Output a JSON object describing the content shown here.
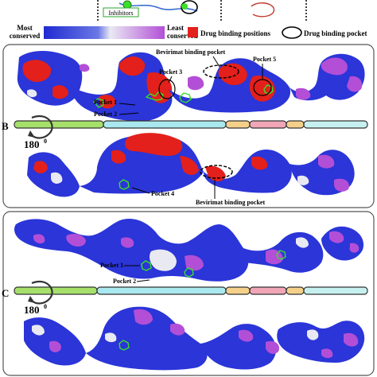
{
  "top_strip": {
    "inhibitors_label": "Inhibitors"
  },
  "legend": {
    "most_conserved": "Most\nconserved",
    "least_conserved": "Least\nconserved",
    "drug_binding_positions": "Drug binding positions",
    "drug_binding_pocket": "Drug binding pocket",
    "colors": {
      "most": "#2b35d8",
      "mid": "#e8e8f0",
      "least": "#b24fd6",
      "drug": "#e3201b",
      "ligand": "#3adf2a"
    }
  },
  "panel_b": {
    "letter": "B",
    "rotation": "180",
    "rotation_sup": "0",
    "labels_top": [
      "Bevirimat binding pocket",
      "Pocket 3",
      "Pocket 5",
      "Pocket 1",
      "Pocket 2"
    ],
    "labels_bottom": [
      "Pocket 4",
      "Bevirimat binding pocket"
    ]
  },
  "panel_c": {
    "letter": "C",
    "rotation": "180",
    "rotation_sup": "0",
    "labels": [
      "Pocket 1",
      "Pocket 2"
    ]
  },
  "domain_bar": {
    "segments": [
      {
        "color": "#a6e06a"
      },
      {
        "color": "#a9e8ee"
      },
      {
        "color": "#f5d08a"
      },
      {
        "color": "#f0a6b6"
      },
      {
        "color": "#f5d08a"
      },
      {
        "color": "#c6f0f0"
      }
    ]
  }
}
